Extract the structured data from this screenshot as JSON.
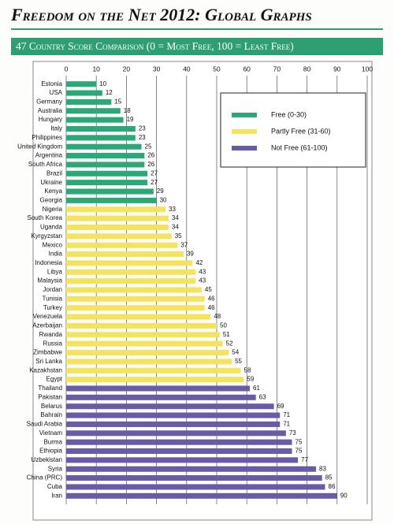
{
  "chart_data": {
    "type": "hbar",
    "title": "Freedom on the Net 2012: Global Graphs",
    "subtitle": "47 Country Score Comparison (0 = Most Free, 100 = Least Free)",
    "categories": [
      "Estonia",
      "USA",
      "Germany",
      "Australia",
      "Hungary",
      "Italy",
      "Philippines",
      "United Kingdom",
      "Argentina",
      "South Africa",
      "Brazil",
      "Ukraine",
      "Kenya",
      "Georgia",
      "Nigeria",
      "South Korea",
      "Uganda",
      "Kyrgyzstan",
      "Mexico",
      "India",
      "Indonesia",
      "Libya",
      "Malaysia",
      "Jordan",
      "Tunisia",
      "Turkey",
      "Venezuela",
      "Azerbaijan",
      "Rwanda",
      "Russia",
      "Zimbabwe",
      "Sri Lanka",
      "Kazakhstan",
      "Egypt",
      "Thailand",
      "Pakistan",
      "Belarus",
      "Bahrain",
      "Saudi Arabia",
      "Vietnam",
      "Burma",
      "Ethiopia",
      "Uzbekistan",
      "Syria",
      "China (PRC)",
      "Cuba",
      "Iran"
    ],
    "series": [
      {
        "name": "Free (0-30)",
        "color": "#2aa876",
        "values": [
          10,
          12,
          15,
          18,
          19,
          23,
          23,
          25,
          26,
          26,
          27,
          27,
          29,
          30,
          null,
          null,
          null,
          null,
          null,
          null,
          null,
          null,
          null,
          null,
          null,
          null,
          null,
          null,
          null,
          null,
          null,
          null,
          null,
          null,
          null,
          null,
          null,
          null,
          null,
          null,
          null,
          null,
          null,
          null,
          null,
          null,
          null
        ]
      },
      {
        "name": "Partly Free (31-60)",
        "color": "#f3e35f",
        "values": [
          null,
          null,
          null,
          null,
          null,
          null,
          null,
          null,
          null,
          null,
          null,
          null,
          null,
          null,
          33,
          34,
          34,
          35,
          37,
          39,
          42,
          43,
          43,
          45,
          46,
          46,
          48,
          50,
          51,
          52,
          54,
          55,
          58,
          59,
          null,
          null,
          null,
          null,
          null,
          null,
          null,
          null,
          null,
          null,
          null,
          null,
          null
        ]
      },
      {
        "name": "Not Free (61-100)",
        "color": "#6b5aa6",
        "values": [
          null,
          null,
          null,
          null,
          null,
          null,
          null,
          null,
          null,
          null,
          null,
          null,
          null,
          null,
          null,
          null,
          null,
          null,
          null,
          null,
          null,
          null,
          null,
          null,
          null,
          null,
          null,
          null,
          null,
          null,
          null,
          null,
          null,
          null,
          61,
          63,
          69,
          71,
          71,
          73,
          75,
          75,
          77,
          83,
          85,
          86,
          90
        ]
      }
    ],
    "xlim": [
      0,
      100
    ],
    "xticks": [
      0,
      10,
      20,
      30,
      40,
      50,
      60,
      70,
      80,
      90,
      100
    ],
    "grid": true,
    "legend": "top-right"
  }
}
